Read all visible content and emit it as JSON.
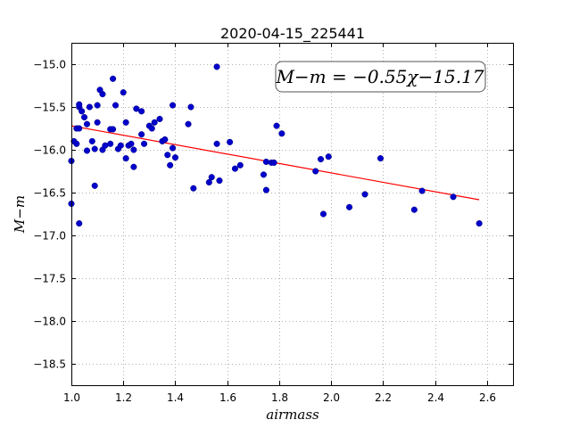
{
  "chart_data": {
    "type": "scatter",
    "title": "2020-04-15_225441",
    "xlabel": "airmass",
    "ylabel": "M−m",
    "xlim": [
      1.0,
      2.7
    ],
    "ylim": [
      -18.75,
      -14.75
    ],
    "y_inverted": true,
    "grid": true,
    "xticks": [
      "1.0",
      "1.2",
      "1.4",
      "1.6",
      "1.8",
      "2.0",
      "2.2",
      "2.4",
      "2.6"
    ],
    "yticks": [
      "−15.0",
      "−15.5",
      "−16.0",
      "−16.5",
      "−17.0",
      "−17.5",
      "−18.0",
      "−18.5"
    ],
    "annotation": "M−m = −0.55χ−15.17",
    "annotation_position": "top-right",
    "marker_color": "#0000cc",
    "line_color": "#ff0000",
    "fit_line": {
      "slope": -0.55,
      "intercept": -15.17,
      "x_range": [
        1.0,
        2.57
      ]
    },
    "points": [
      {
        "x": 1.0,
        "y": -16.13
      },
      {
        "x": 1.0,
        "y": -16.63
      },
      {
        "x": 1.01,
        "y": -15.9
      },
      {
        "x": 1.02,
        "y": -15.93
      },
      {
        "x": 1.02,
        "y": -15.75
      },
      {
        "x": 1.03,
        "y": -15.5
      },
      {
        "x": 1.03,
        "y": -15.47
      },
      {
        "x": 1.03,
        "y": -15.75
      },
      {
        "x": 1.03,
        "y": -16.86
      },
      {
        "x": 1.04,
        "y": -15.55
      },
      {
        "x": 1.05,
        "y": -15.62
      },
      {
        "x": 1.06,
        "y": -15.7
      },
      {
        "x": 1.06,
        "y": -16.01
      },
      {
        "x": 1.07,
        "y": -15.5
      },
      {
        "x": 1.08,
        "y": -15.9
      },
      {
        "x": 1.09,
        "y": -15.99
      },
      {
        "x": 1.09,
        "y": -16.42
      },
      {
        "x": 1.1,
        "y": -15.68
      },
      {
        "x": 1.1,
        "y": -15.48
      },
      {
        "x": 1.11,
        "y": -15.3
      },
      {
        "x": 1.12,
        "y": -15.35
      },
      {
        "x": 1.12,
        "y": -16.0
      },
      {
        "x": 1.13,
        "y": -15.95
      },
      {
        "x": 1.15,
        "y": -15.93
      },
      {
        "x": 1.15,
        "y": -15.76
      },
      {
        "x": 1.16,
        "y": -15.76
      },
      {
        "x": 1.16,
        "y": -15.17
      },
      {
        "x": 1.17,
        "y": -15.48
      },
      {
        "x": 1.18,
        "y": -15.99
      },
      {
        "x": 1.19,
        "y": -15.95
      },
      {
        "x": 1.2,
        "y": -15.33
      },
      {
        "x": 1.21,
        "y": -15.68
      },
      {
        "x": 1.21,
        "y": -16.1
      },
      {
        "x": 1.22,
        "y": -15.95
      },
      {
        "x": 1.23,
        "y": -15.93
      },
      {
        "x": 1.24,
        "y": -16.0
      },
      {
        "x": 1.24,
        "y": -16.2
      },
      {
        "x": 1.25,
        "y": -15.52
      },
      {
        "x": 1.27,
        "y": -15.55
      },
      {
        "x": 1.27,
        "y": -15.82
      },
      {
        "x": 1.28,
        "y": -15.93
      },
      {
        "x": 1.3,
        "y": -15.72
      },
      {
        "x": 1.31,
        "y": -15.75
      },
      {
        "x": 1.32,
        "y": -15.68
      },
      {
        "x": 1.34,
        "y": -15.64
      },
      {
        "x": 1.35,
        "y": -15.9
      },
      {
        "x": 1.36,
        "y": -15.88
      },
      {
        "x": 1.37,
        "y": -16.06
      },
      {
        "x": 1.38,
        "y": -16.18
      },
      {
        "x": 1.39,
        "y": -15.48
      },
      {
        "x": 1.39,
        "y": -15.98
      },
      {
        "x": 1.4,
        "y": -16.09
      },
      {
        "x": 1.45,
        "y": -15.7
      },
      {
        "x": 1.46,
        "y": -15.5
      },
      {
        "x": 1.47,
        "y": -16.45
      },
      {
        "x": 1.53,
        "y": -16.38
      },
      {
        "x": 1.54,
        "y": -16.32
      },
      {
        "x": 1.56,
        "y": -15.03
      },
      {
        "x": 1.56,
        "y": -15.93
      },
      {
        "x": 1.57,
        "y": -16.36
      },
      {
        "x": 1.61,
        "y": -15.91
      },
      {
        "x": 1.63,
        "y": -16.22
      },
      {
        "x": 1.65,
        "y": -16.18
      },
      {
        "x": 1.74,
        "y": -16.29
      },
      {
        "x": 1.75,
        "y": -16.47
      },
      {
        "x": 1.75,
        "y": -16.14
      },
      {
        "x": 1.77,
        "y": -16.15
      },
      {
        "x": 1.78,
        "y": -16.15
      },
      {
        "x": 1.79,
        "y": -15.72
      },
      {
        "x": 1.81,
        "y": -15.81
      },
      {
        "x": 1.94,
        "y": -16.25
      },
      {
        "x": 1.96,
        "y": -16.11
      },
      {
        "x": 1.97,
        "y": -16.75
      },
      {
        "x": 1.99,
        "y": -16.08
      },
      {
        "x": 2.07,
        "y": -16.67
      },
      {
        "x": 2.13,
        "y": -16.52
      },
      {
        "x": 2.19,
        "y": -16.1
      },
      {
        "x": 2.32,
        "y": -16.7
      },
      {
        "x": 2.35,
        "y": -16.48
      },
      {
        "x": 2.47,
        "y": -16.55
      },
      {
        "x": 2.57,
        "y": -16.86
      }
    ]
  }
}
